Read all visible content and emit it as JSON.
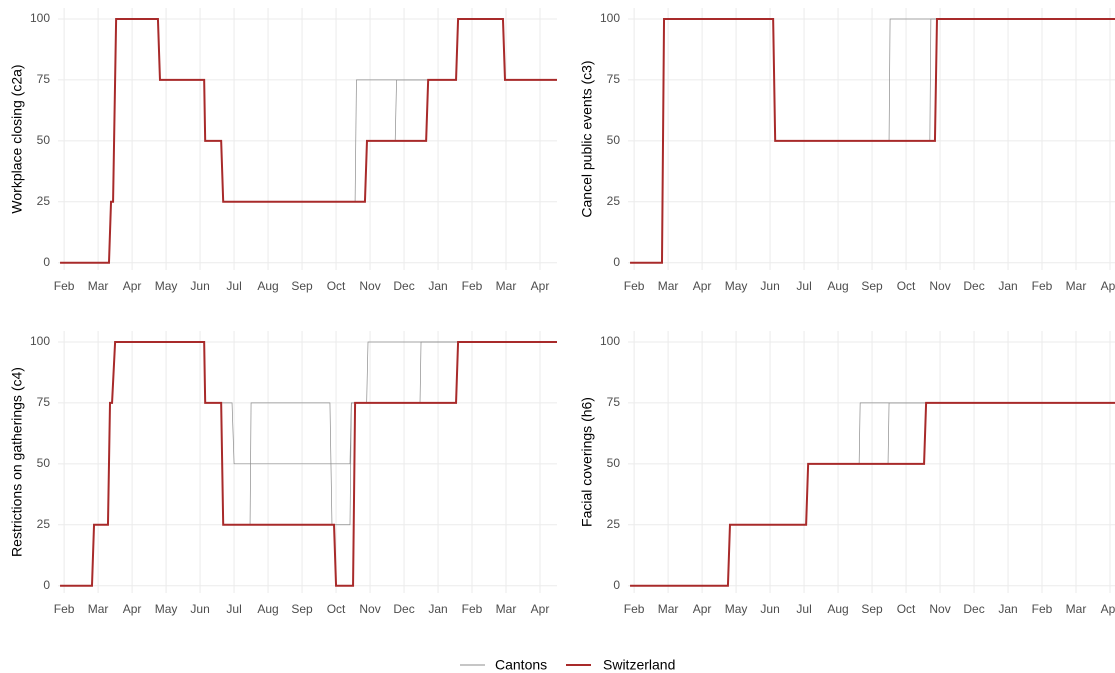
{
  "legend": [
    {
      "name": "Cantons",
      "color": "#8c8c8c"
    },
    {
      "name": "Switzerland",
      "color": "#a82a2a"
    }
  ],
  "chart_data": [
    {
      "type": "line",
      "ylabel": "Workplace closing (c2a)",
      "xlim": [
        -0.18,
        14.5
      ],
      "ylim": [
        -3,
        104.5
      ],
      "xticks": [
        {
          "value": 0,
          "label": "Feb"
        },
        {
          "value": 1,
          "label": "Mar"
        },
        {
          "value": 2,
          "label": "Apr"
        },
        {
          "value": 3,
          "label": "May"
        },
        {
          "value": 4,
          "label": "Jun"
        },
        {
          "value": 5,
          "label": "Jul"
        },
        {
          "value": 6,
          "label": "Aug"
        },
        {
          "value": 7,
          "label": "Sep"
        },
        {
          "value": 8,
          "label": "Oct"
        },
        {
          "value": 9,
          "label": "Nov"
        },
        {
          "value": 10,
          "label": "Dec"
        },
        {
          "value": 11,
          "label": "Jan"
        },
        {
          "value": 12,
          "label": "Feb"
        },
        {
          "value": 13,
          "label": "Mar"
        },
        {
          "value": 14,
          "label": "Apr"
        }
      ],
      "yticks": [
        0,
        25,
        50,
        75,
        100
      ],
      "series": [
        {
          "legend": 0,
          "x": [
            8.56,
            8.6,
            11.53,
            11.59,
            12.91,
            12.97,
            14.5
          ],
          "values": [
            25,
            75,
            75,
            100,
            100,
            75,
            75
          ]
        },
        {
          "legend": 0,
          "x": [
            9.74,
            9.78,
            10.8,
            10.84,
            11.53,
            11.59
          ],
          "values": [
            50,
            75,
            75,
            75,
            75,
            100
          ]
        },
        {
          "legend": 1,
          "x": [
            -0.12,
            1.32,
            1.38,
            1.44,
            1.53,
            2.76,
            2.82,
            4.12,
            4.15,
            4.62,
            4.68,
            8.85,
            8.91,
            10.65,
            10.71,
            11.53,
            11.59,
            12.91,
            12.97,
            14.5
          ],
          "values": [
            0,
            0,
            25,
            25,
            100,
            100,
            75,
            75,
            50,
            50,
            25,
            25,
            50,
            50,
            75,
            75,
            100,
            100,
            75,
            75
          ]
        }
      ]
    },
    {
      "type": "line",
      "ylabel": "Cancel public events (c3)",
      "xlim": [
        -0.18,
        14.5
      ],
      "ylim": [
        -3,
        104.5
      ],
      "xticks": [
        {
          "value": 0,
          "label": "Feb"
        },
        {
          "value": 1,
          "label": "Mar"
        },
        {
          "value": 2,
          "label": "Apr"
        },
        {
          "value": 3,
          "label": "May"
        },
        {
          "value": 4,
          "label": "Jun"
        },
        {
          "value": 5,
          "label": "Jul"
        },
        {
          "value": 6,
          "label": "Aug"
        },
        {
          "value": 7,
          "label": "Sep"
        },
        {
          "value": 8,
          "label": "Oct"
        },
        {
          "value": 9,
          "label": "Nov"
        },
        {
          "value": 10,
          "label": "Dec"
        },
        {
          "value": 11,
          "label": "Jan"
        },
        {
          "value": 12,
          "label": "Feb"
        },
        {
          "value": 13,
          "label": "Mar"
        },
        {
          "value": 14,
          "label": "Apr"
        }
      ],
      "yticks": [
        0,
        25,
        50,
        75,
        100
      ],
      "series": [
        {
          "legend": 0,
          "x": [
            7.5,
            7.53,
            8.91
          ],
          "values": [
            50,
            100,
            100
          ]
        },
        {
          "legend": 0,
          "x": [
            8.7,
            8.73,
            8.91
          ],
          "values": [
            50,
            100,
            100
          ]
        },
        {
          "legend": 1,
          "x": [
            -0.12,
            0.82,
            0.88,
            4.09,
            4.15,
            8.85,
            8.91,
            14.5
          ],
          "values": [
            0,
            0,
            100,
            100,
            50,
            50,
            100,
            100
          ]
        }
      ]
    },
    {
      "type": "line",
      "ylabel": "Restrictions on gatherings (c4)",
      "xlim": [
        -0.18,
        14.5
      ],
      "ylim": [
        -3,
        104.5
      ],
      "xticks": [
        {
          "value": 0,
          "label": "Feb"
        },
        {
          "value": 1,
          "label": "Mar"
        },
        {
          "value": 2,
          "label": "Apr"
        },
        {
          "value": 3,
          "label": "May"
        },
        {
          "value": 4,
          "label": "Jun"
        },
        {
          "value": 5,
          "label": "Jul"
        },
        {
          "value": 6,
          "label": "Aug"
        },
        {
          "value": 7,
          "label": "Sep"
        },
        {
          "value": 8,
          "label": "Oct"
        },
        {
          "value": 9,
          "label": "Nov"
        },
        {
          "value": 10,
          "label": "Dec"
        },
        {
          "value": 11,
          "label": "Jan"
        },
        {
          "value": 12,
          "label": "Feb"
        },
        {
          "value": 13,
          "label": "Mar"
        },
        {
          "value": 14,
          "label": "Apr"
        }
      ],
      "yticks": [
        0,
        25,
        50,
        75,
        100
      ],
      "series": [
        {
          "legend": 0,
          "x": [
            4.62,
            4.94,
            5.0,
            8.41,
            8.45,
            8.9,
            8.94,
            11.59
          ],
          "values": [
            75,
            75,
            50,
            50,
            75,
            75,
            100,
            100
          ]
        },
        {
          "legend": 0,
          "x": [
            4.68,
            5.47,
            5.5,
            7.82,
            7.88,
            8.41,
            8.45,
            10.47,
            10.5,
            11.59
          ],
          "values": [
            25,
            25,
            75,
            75,
            25,
            25,
            75,
            75,
            100,
            100
          ]
        },
        {
          "legend": 1,
          "x": [
            -0.12,
            0.82,
            0.88,
            1.29,
            1.35,
            1.41,
            1.5,
            4.12,
            4.15,
            4.62,
            4.68,
            7.94,
            8.0,
            8.5,
            8.56,
            11.53,
            11.59,
            14.5
          ],
          "values": [
            0,
            0,
            25,
            25,
            75,
            75,
            100,
            100,
            75,
            75,
            25,
            25,
            0,
            0,
            75,
            75,
            100,
            100
          ]
        }
      ]
    },
    {
      "type": "line",
      "ylabel": "Facial coverings (h6)",
      "xlim": [
        -0.18,
        14.5
      ],
      "ylim": [
        -3,
        104.5
      ],
      "xticks": [
        {
          "value": 0,
          "label": "Feb"
        },
        {
          "value": 1,
          "label": "Mar"
        },
        {
          "value": 2,
          "label": "Apr"
        },
        {
          "value": 3,
          "label": "May"
        },
        {
          "value": 4,
          "label": "Jun"
        },
        {
          "value": 5,
          "label": "Jul"
        },
        {
          "value": 6,
          "label": "Aug"
        },
        {
          "value": 7,
          "label": "Sep"
        },
        {
          "value": 8,
          "label": "Oct"
        },
        {
          "value": 9,
          "label": "Nov"
        },
        {
          "value": 10,
          "label": "Dec"
        },
        {
          "value": 11,
          "label": "Jan"
        },
        {
          "value": 12,
          "label": "Feb"
        },
        {
          "value": 13,
          "label": "Mar"
        },
        {
          "value": 14,
          "label": "Apr"
        }
      ],
      "yticks": [
        0,
        25,
        50,
        75,
        100
      ],
      "series": [
        {
          "legend": 0,
          "x": [
            6.62,
            6.65,
            8.59
          ],
          "values": [
            50,
            75,
            75
          ]
        },
        {
          "legend": 0,
          "x": [
            7.47,
            7.5,
            8.59
          ],
          "values": [
            50,
            75,
            75
          ]
        },
        {
          "legend": 1,
          "x": [
            -0.12,
            2.76,
            2.82,
            5.06,
            5.12,
            8.53,
            8.59,
            14.5
          ],
          "values": [
            0,
            0,
            25,
            25,
            50,
            50,
            75,
            75
          ]
        }
      ]
    }
  ]
}
